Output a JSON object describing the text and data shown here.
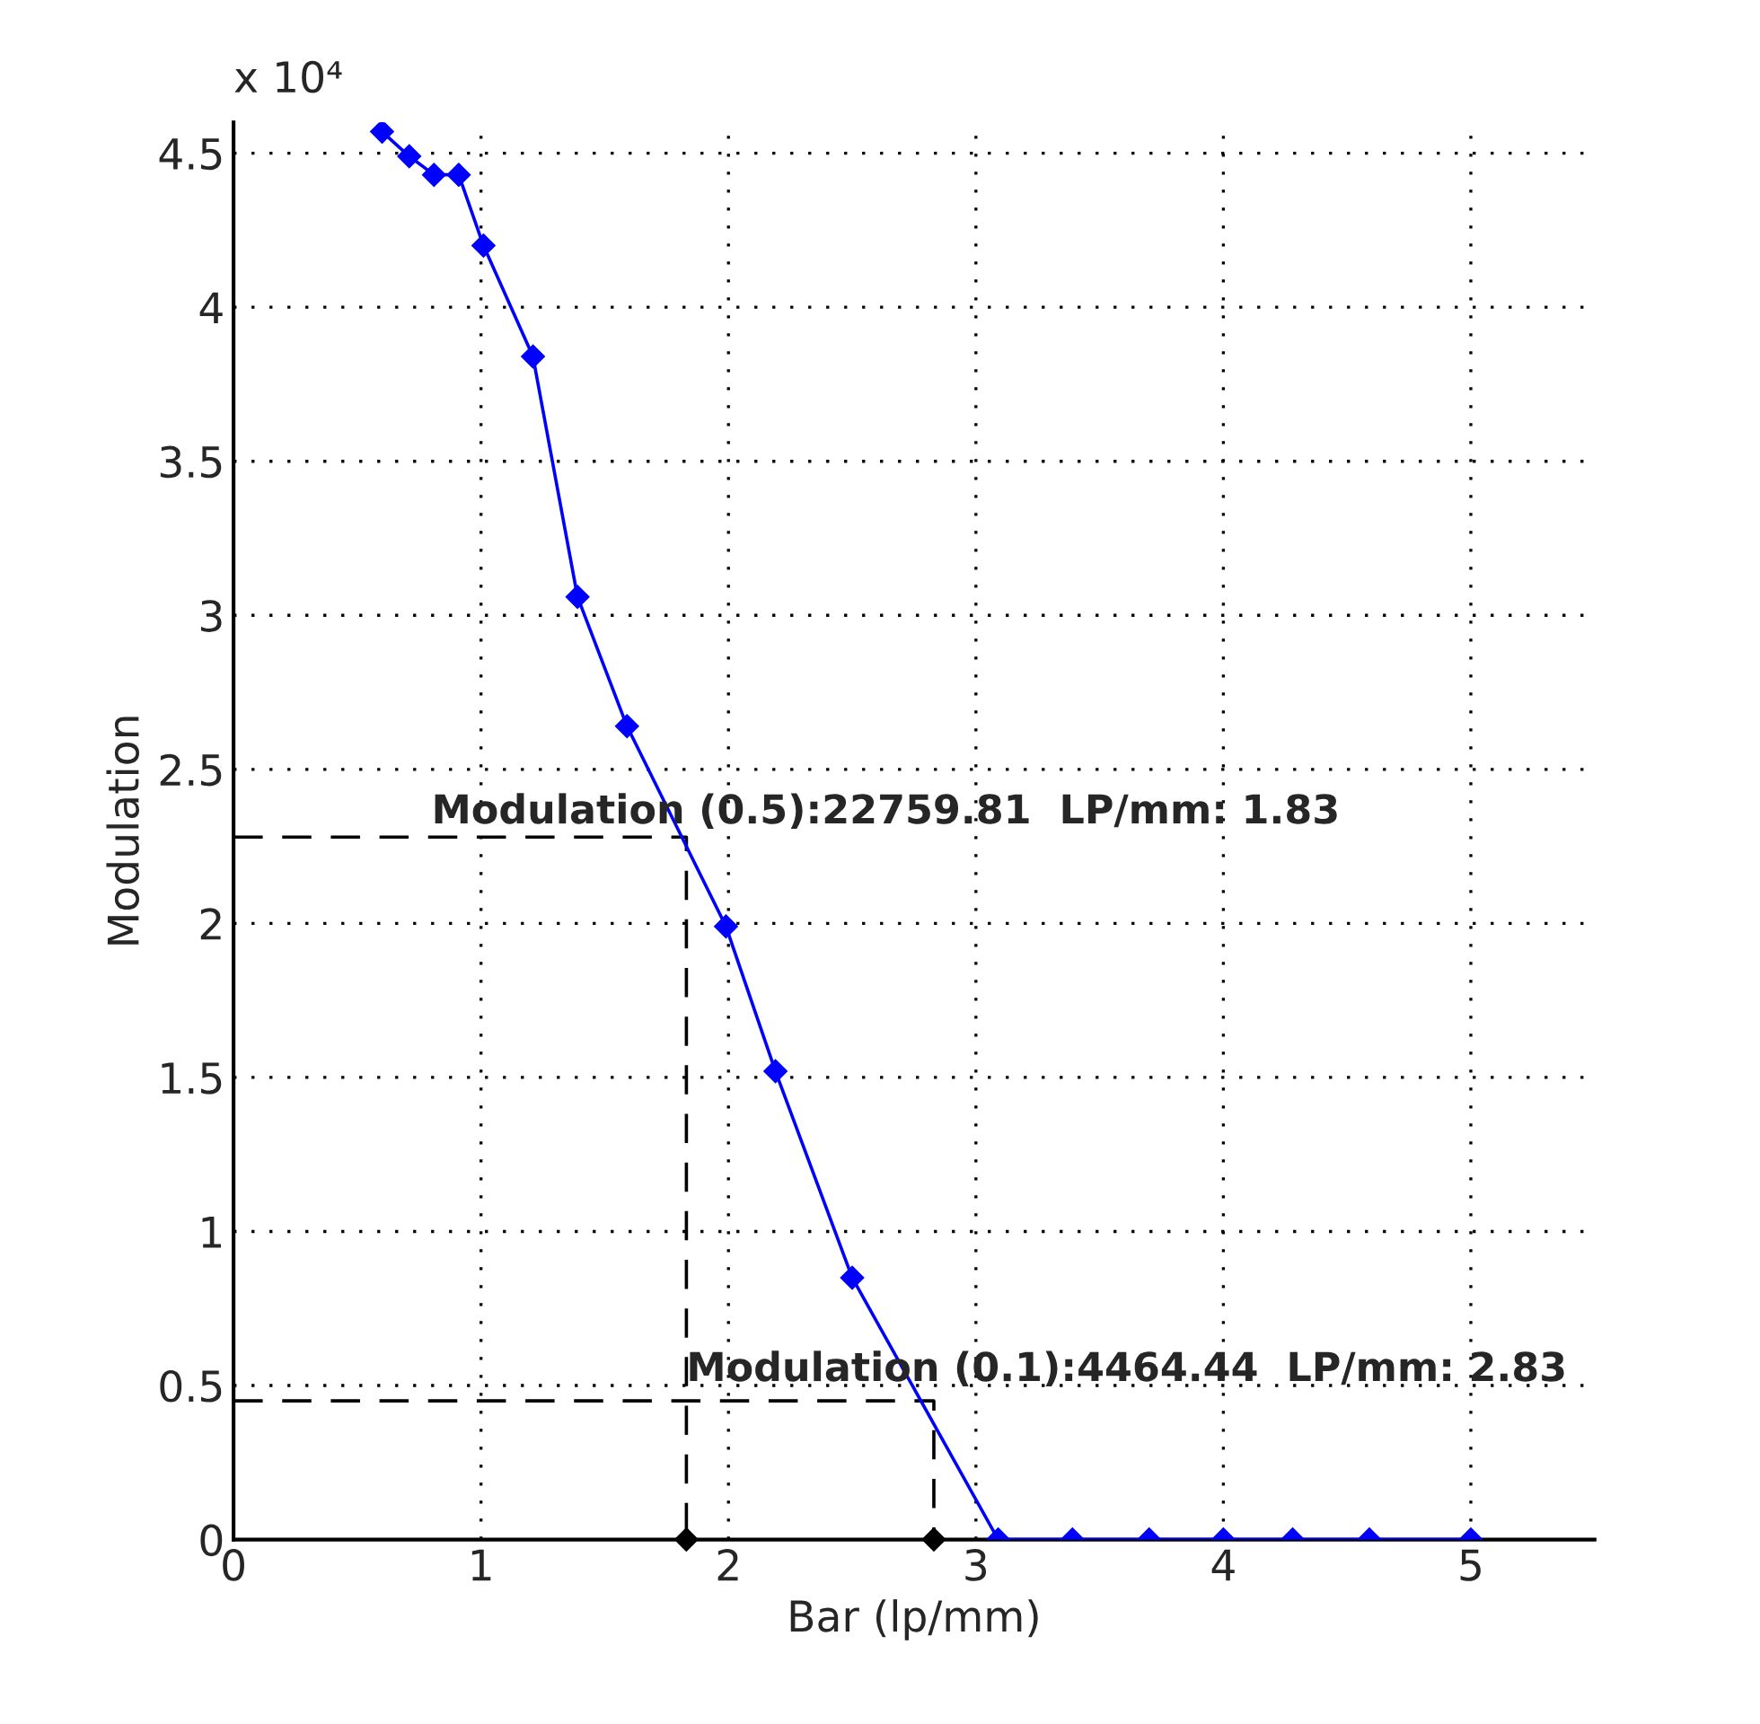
{
  "chart_data": {
    "type": "line",
    "xlabel": "Bar (lp/mm)",
    "ylabel": "Modulation",
    "series": [
      {
        "type": "line",
        "color": "#0000ff",
        "marker": "diamond",
        "line_style": "solid",
        "x": [
          0.6,
          0.71,
          0.81,
          0.91,
          1.01,
          1.21,
          1.39,
          1.59,
          1.99,
          2.19,
          2.5,
          3.09,
          3.39,
          3.7,
          4.0,
          4.28,
          4.59,
          5.0
        ],
        "values": [
          4.57,
          4.49,
          4.43,
          4.43,
          4.2,
          3.84,
          3.06,
          2.64,
          1.99,
          1.52,
          0.85,
          0,
          0,
          0,
          0,
          0,
          0,
          0
        ]
      },
      {
        "type": "line",
        "color": "#000000",
        "marker": "none",
        "line_style": "dashed",
        "x": [
          0,
          1.83,
          1.83
        ],
        "values": [
          2.28,
          2.28,
          0
        ]
      },
      {
        "type": "line",
        "color": "#000000",
        "marker": "none",
        "line_style": "dashed",
        "x": [
          0,
          2.83,
          2.83
        ],
        "values": [
          0.45,
          0.45,
          0
        ]
      }
    ],
    "xlim": [
      0,
      5.5
    ],
    "xticks": [
      0,
      1,
      2,
      3,
      4,
      5
    ],
    "ylim": [
      0,
      4.6
    ],
    "yticks": [
      0,
      0.5,
      1,
      1.5,
      2,
      2.5,
      3,
      3.5,
      4,
      4.5
    ],
    "grid": true,
    "annotations": [
      "Modulation (0.5):22759.81  LP/mm: 1.83",
      {
        "text": "Modulation (0.1):4464.44  LP/mm: 2.83",
        "x": 1.83,
        "y": 0.55
      },
      "x 10⁴"
    ]
  }
}
